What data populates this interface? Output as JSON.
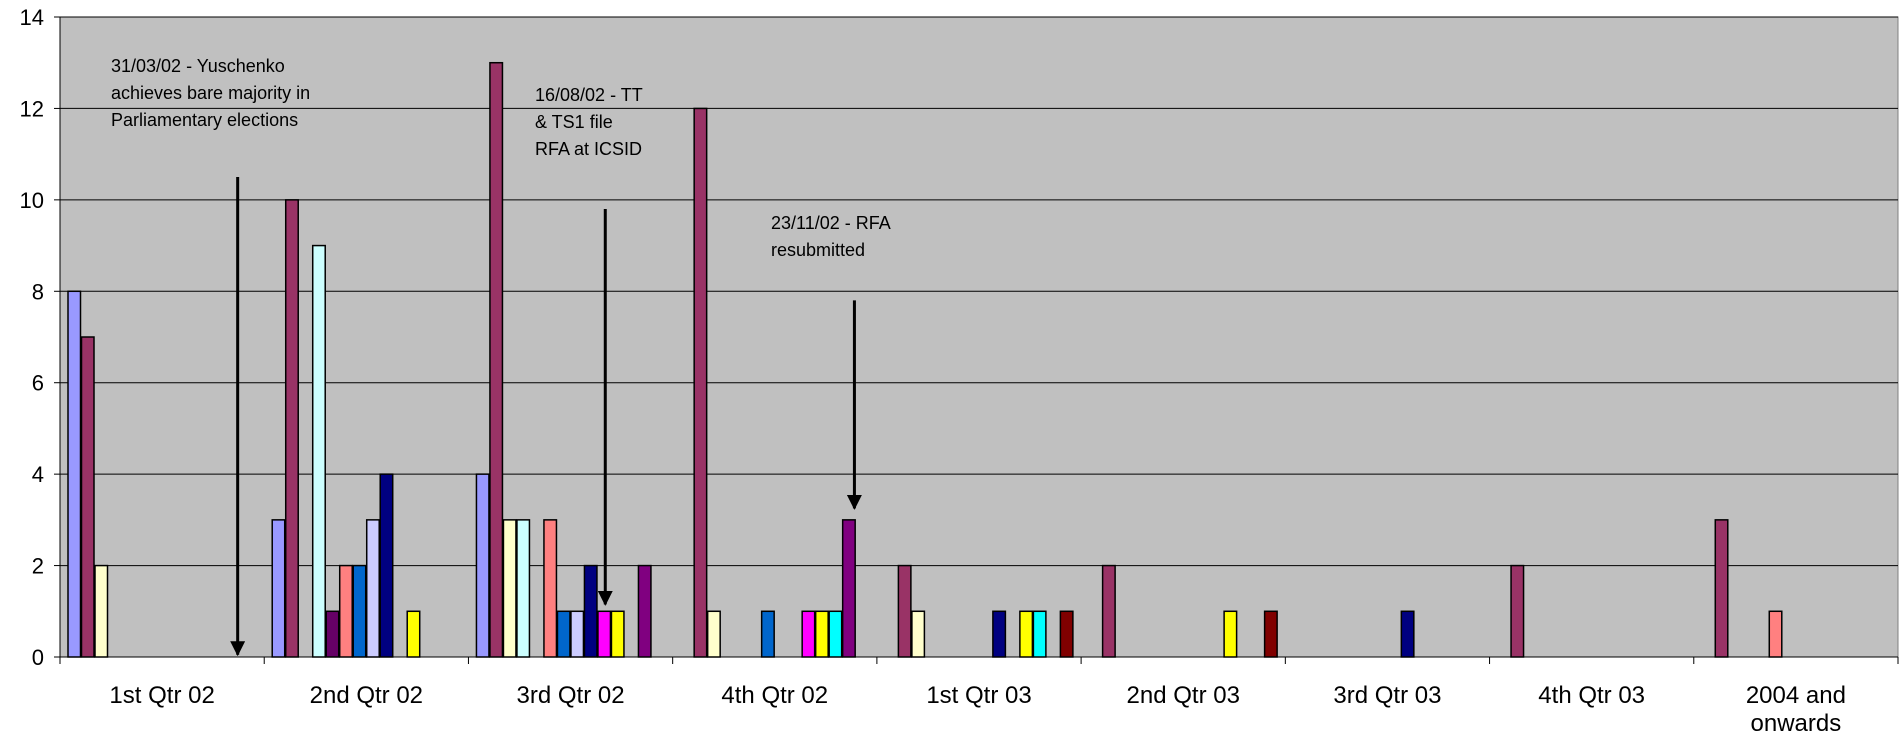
{
  "chart_data": {
    "type": "bar",
    "categories": [
      "1st Qtr 02",
      "2nd Qtr 02",
      "3rd Qtr 02",
      "4th Qtr 02",
      "1st Qtr 03",
      "2nd Qtr 03",
      "3rd Qtr 03",
      "4th Qtr 03",
      "2004 and onwards"
    ],
    "category_lines": [
      [
        "1st Qtr 02"
      ],
      [
        "2nd Qtr 02"
      ],
      [
        "3rd Qtr 02"
      ],
      [
        "4th Qtr 02"
      ],
      [
        "1st Qtr 03"
      ],
      [
        "2nd Qtr 03"
      ],
      [
        "3rd Qtr 03"
      ],
      [
        "4th Qtr 03"
      ],
      [
        "2004 and",
        "onwards"
      ]
    ],
    "ylim": [
      0,
      14
    ],
    "yticks": [
      0,
      2,
      4,
      6,
      8,
      10,
      12,
      14
    ],
    "ytick_labels": [
      "0",
      "2",
      "4",
      "6",
      "8",
      "10",
      "12",
      "14"
    ],
    "grid": true,
    "plot_background": "#C0C0C0",
    "series_colors": [
      "#9999FF",
      "#993366",
      "#FFFFCC",
      "#CCFFFF",
      "#660066",
      "#FF8080",
      "#0066CC",
      "#CCCCFF",
      "#000080",
      "#FF00FF",
      "#FFFF00",
      "#00FFFF",
      "#800080",
      "#800000"
    ],
    "values": [
      [
        8,
        7,
        2,
        0,
        0,
        0,
        0,
        0,
        0,
        0,
        0,
        0,
        0,
        0
      ],
      [
        3,
        10,
        0,
        9,
        1,
        2,
        2,
        3,
        4,
        0,
        1,
        0,
        0,
        0
      ],
      [
        4,
        13,
        3,
        3,
        0,
        3,
        1,
        1,
        2,
        1,
        1,
        0,
        2,
        0
      ],
      [
        0,
        12,
        1,
        0,
        0,
        0,
        1,
        0,
        0,
        1,
        1,
        1,
        3,
        0
      ],
      [
        0,
        2,
        1,
        0,
        0,
        0,
        0,
        0,
        1,
        0,
        1,
        1,
        0,
        1
      ],
      [
        0,
        2,
        0,
        0,
        0,
        0,
        0,
        0,
        0,
        0,
        1,
        0,
        0,
        1
      ],
      [
        0,
        0,
        0,
        0,
        0,
        0,
        0,
        0,
        1,
        0,
        0,
        0,
        0,
        0
      ],
      [
        0,
        2,
        0,
        0,
        0,
        0,
        0,
        0,
        0,
        0,
        0,
        0,
        0,
        0
      ],
      [
        0,
        3,
        0,
        0,
        0,
        1,
        0,
        0,
        0,
        0,
        0,
        0,
        0,
        0
      ]
    ],
    "annotations": [
      {
        "lines": [
          "31/03/02 - Yuschenko",
          "achieves bare majority in",
          "Parliamentary elections"
        ],
        "arrow_category": 0,
        "arrow_group_offset": 0.87,
        "arrow_from": 10.5,
        "arrow_to": 0.05
      },
      {
        "lines": [
          "16/08/02 - TT",
          "& TS1 file",
          "RFA at ICSID"
        ],
        "arrow_category": 2,
        "arrow_group_offset": 0.67,
        "arrow_from": 9.8,
        "arrow_to": 1.15
      },
      {
        "lines": [
          "23/11/02 - RFA",
          "resubmitted"
        ],
        "arrow_category": 3,
        "arrow_group_offset": 0.89,
        "arrow_from": 7.8,
        "arrow_to": 3.25
      }
    ]
  }
}
